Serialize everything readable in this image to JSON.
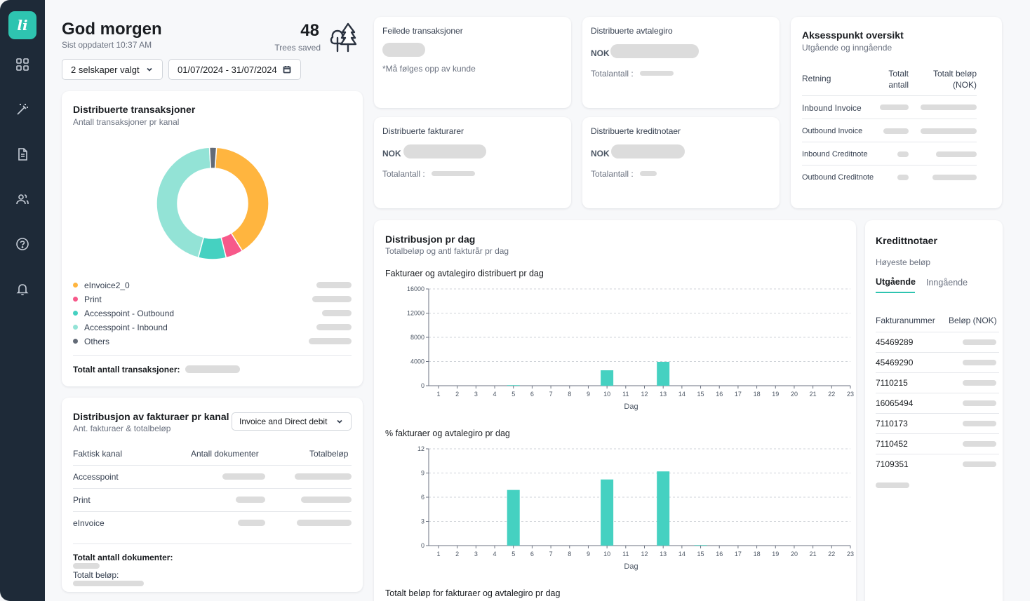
{
  "app": {
    "logo_text": "li",
    "brand_color": "#2ec4b0",
    "sidebar_color": "#1e2a38"
  },
  "sidebar": {
    "items": [
      {
        "icon": "grid-icon",
        "name": "dashboard"
      },
      {
        "icon": "magic-wand-icon",
        "name": "tools"
      },
      {
        "icon": "document-icon",
        "name": "documents"
      },
      {
        "icon": "users-icon",
        "name": "users"
      },
      {
        "icon": "help-icon",
        "name": "help"
      },
      {
        "icon": "bell-icon",
        "name": "notifications"
      }
    ]
  },
  "header": {
    "greeting": "God morgen",
    "updated": "Sist oppdatert 10:37 AM",
    "trees_count": "48",
    "trees_label": "Trees saved",
    "company_select": "2 selskaper valgt",
    "date_range": "01/07/2024 - 31/07/2024"
  },
  "dist_transactions": {
    "title": "Distribuerte transaksjoner",
    "subtitle": "Antall transaksjoner pr kanal",
    "legend": [
      {
        "label": "eInvoice2_0",
        "color": "#ffb53f",
        "share": 0.4
      },
      {
        "label": "Print",
        "color": "#f7598a",
        "share": 0.05
      },
      {
        "label": "Accesspoint - Outbound",
        "color": "#45d1c1",
        "share": 0.08
      },
      {
        "label": "Accesspoint - Inbound",
        "color": "#93e3d6",
        "share": 0.45
      },
      {
        "label": "Others",
        "color": "#636b77",
        "share": 0.02
      }
    ],
    "total_label": "Totalt antall transaksjoner:"
  },
  "invoices_per_channel": {
    "title": "Distribusjon av fakturaer pr kanal",
    "subtitle": "Ant. fakturaer & totalbeløp",
    "select_value": "Invoice and Direct debit",
    "columns": [
      "Faktisk kanal",
      "Antall dokumenter",
      "Totalbeløp"
    ],
    "rows": [
      "Accesspoint",
      "Print",
      "eInvoice"
    ],
    "total_docs_label": "Totalt antall dokumenter:",
    "total_amount_label": "Totalt beløp:"
  },
  "kpi": {
    "failed": {
      "title": "Feilede transaksjoner",
      "note": "*Må følges opp av kunde"
    },
    "direct_debit": {
      "title": "Distribuerte avtalegiro",
      "currency": "NOK",
      "count_label": "Totalantall :"
    },
    "invoices": {
      "title": "Distribuerte fakturarer",
      "currency": "NOK",
      "count_label": "Totalantall :"
    },
    "credit_notes": {
      "title": "Distribuerte kreditnotaer",
      "currency": "NOK",
      "count_label": "Totalantall :"
    }
  },
  "accesspoint": {
    "title": "Aksesspunkt oversikt",
    "subtitle": "Utgående og inngående",
    "col_direction": "Retning",
    "col_count": "Totalt antall",
    "col_amount": "Totalt beløp (NOK)",
    "rows": [
      "Inbound Invoice",
      "Outbound Invoice",
      "Inbound Creditnote",
      "Outbound Creditnote"
    ]
  },
  "per_day": {
    "title": "Distribusjon pr dag",
    "subtitle": "Totalbeløp og antl fakturår pr dag",
    "chart1_title": "Fakturaer og avtalegiro distribuert pr dag",
    "chart2_title": "% fakturaer og avtalegiro pr dag",
    "chart3_title": "Totalt beløp for fakturaer og avtalegiro pr dag"
  },
  "credit_notes": {
    "title": "Kredittnotaer",
    "subtitle": "Høyeste beløp",
    "tab_outgoing": "Utgående",
    "tab_incoming": "Inngående",
    "col_number": "Fakturanummer",
    "col_amount": "Beløp (NOK)",
    "rows": [
      "45469289",
      "45469290",
      "7110215",
      "16065494",
      "7110173",
      "7110452",
      "7109351"
    ]
  },
  "chart_data": [
    {
      "type": "bar",
      "title": "Fakturaer og avtalegiro distribuert pr dag",
      "xlabel": "Dag",
      "ylabel": "",
      "x": [
        1,
        2,
        3,
        4,
        5,
        6,
        7,
        8,
        9,
        10,
        11,
        12,
        13,
        14,
        15,
        16,
        17,
        18,
        19,
        20,
        21,
        22,
        23
      ],
      "values": [
        0,
        0,
        0,
        0,
        30,
        0,
        0,
        0,
        0,
        2550,
        0,
        0,
        3950,
        0,
        0,
        0,
        0,
        0,
        0,
        0,
        0,
        0,
        0
      ],
      "yticks": [
        "0",
        "4000",
        "8000",
        "12000",
        "16000"
      ],
      "ylim": [
        0,
        16000
      ],
      "color": "#45d1c1"
    },
    {
      "type": "bar",
      "title": "% fakturaer og avtalegiro pr dag",
      "xlabel": "Dag",
      "ylabel": "",
      "x": [
        1,
        2,
        3,
        4,
        5,
        6,
        7,
        8,
        9,
        10,
        11,
        12,
        13,
        14,
        15,
        16,
        17,
        18,
        19,
        20,
        21,
        22,
        23
      ],
      "values": [
        0,
        0,
        0,
        0,
        6.9,
        0,
        0,
        0,
        0,
        8.2,
        0,
        0,
        9.2,
        0,
        0.05,
        0,
        0,
        0,
        0,
        0,
        0,
        0,
        0
      ],
      "yticks": [
        "0",
        "3",
        "6",
        "9",
        "12"
      ],
      "ylim": [
        0,
        12
      ],
      "color": "#45d1c1"
    }
  ]
}
